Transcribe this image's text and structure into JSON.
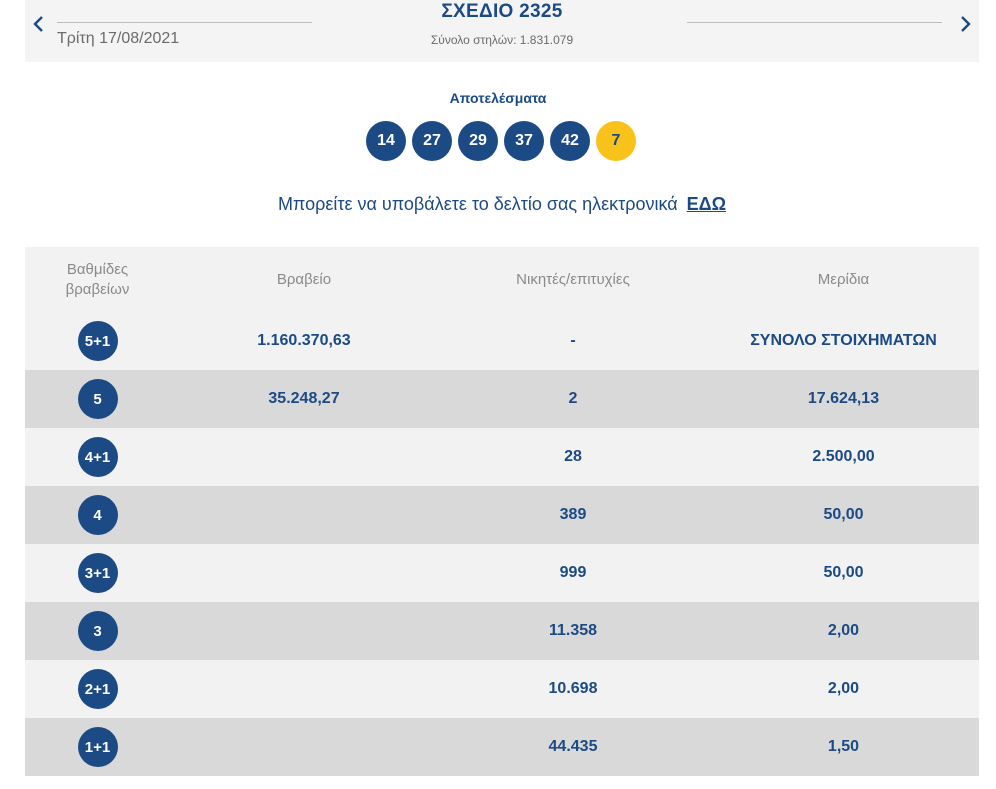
{
  "header": {
    "date": "Τρίτη 17/08/2021",
    "title": "ΣΧΕΔΙΟ 2325",
    "total_columns": "Σύνολο στηλών: 1.831.079",
    "prev_icon": "chevron-left-icon",
    "next_icon": "chevron-right-icon"
  },
  "results": {
    "label": "Αποτελέσματα",
    "numbers": [
      "14",
      "27",
      "29",
      "37",
      "42"
    ],
    "joker": "7"
  },
  "submit": {
    "text": "Μπορείτε να υποβάλετε το δελτίο σας ηλεκτρονικά",
    "link": "ΕΔΩ"
  },
  "table": {
    "headers": {
      "tier": "Βαθμίδες βραβείων",
      "prize": "Βραβείο",
      "winners": "Νικητές/επιτυχίες",
      "share": "Μερίδια"
    },
    "rows": [
      {
        "tier": "5+1",
        "prize": "1.160.370,63",
        "winners": "-",
        "share": "ΣΥΝΟΛΟ ΣΤΟΙΧΗΜΑΤΩΝ"
      },
      {
        "tier": "5",
        "prize": "35.248,27",
        "winners": "2",
        "share": "17.624,13"
      },
      {
        "tier": "4+1",
        "prize": "",
        "winners": "28",
        "share": "2.500,00"
      },
      {
        "tier": "4",
        "prize": "",
        "winners": "389",
        "share": "50,00"
      },
      {
        "tier": "3+1",
        "prize": "",
        "winners": "999",
        "share": "50,00"
      },
      {
        "tier": "3",
        "prize": "",
        "winners": "11.358",
        "share": "2,00"
      },
      {
        "tier": "2+1",
        "prize": "",
        "winners": "10.698",
        "share": "2,00"
      },
      {
        "tier": "1+1",
        "prize": "",
        "winners": "44.435",
        "share": "1,50"
      }
    ]
  },
  "colors": {
    "primary": "#1b4a84",
    "joker": "#f8c21a",
    "row_light": "#f2f2f2",
    "row_dark": "#d9d9d9"
  }
}
